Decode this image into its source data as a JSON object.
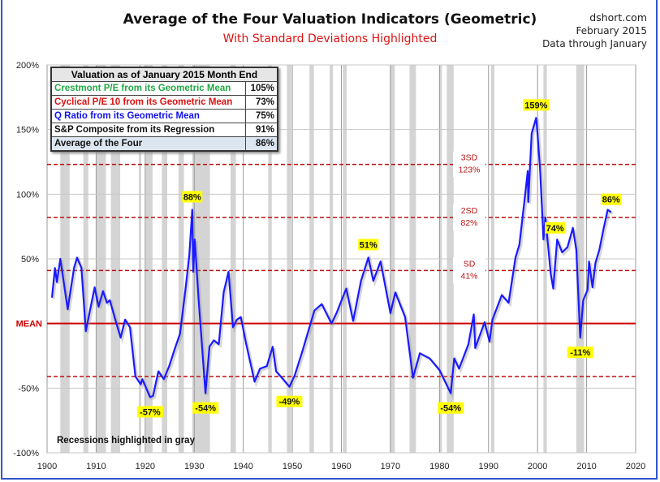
{
  "header": {
    "title": "Average of the Four Valuation Indicators (Geometric)",
    "subtitle": "With Standard Deviations Highlighted",
    "source": "dshort.com",
    "date": "February 2015",
    "data_through": "Data through January"
  },
  "table": {
    "title": "Valuation as of January 2015 Month End",
    "rows": [
      {
        "label": "Crestmont P/E from its Geometric Mean",
        "value": "105%",
        "color": "#22aa44"
      },
      {
        "label": "Cyclical P/E 10 from its Geometric Mean",
        "value": "73%",
        "color": "#dd1111"
      },
      {
        "label": "Q Ratio from its Geometric Mean",
        "value": "75%",
        "color": "#1111ee"
      },
      {
        "label": "S&P Composite from its Regression",
        "value": "91%",
        "color": "#111111"
      },
      {
        "label": "Average of the Four",
        "value": "86%",
        "color": "#111111"
      }
    ]
  },
  "note": "Recessions highlighted in gray",
  "chart_data": {
    "type": "line",
    "xlim": [
      1900,
      2020
    ],
    "ylim": [
      -100,
      200
    ],
    "x_ticks": [
      "1900",
      "1910",
      "1920",
      "1930",
      "1940",
      "1950",
      "1960",
      "1970",
      "1980",
      "1990",
      "2000",
      "2010",
      "2020"
    ],
    "y_ticks": [
      {
        "value": 200,
        "label": "200%"
      },
      {
        "value": 150,
        "label": "150%"
      },
      {
        "value": 100,
        "label": "100%"
      },
      {
        "value": 50,
        "label": "50%"
      },
      {
        "value": 0,
        "label": "MEAN"
      },
      {
        "value": -50,
        "label": "-50%"
      },
      {
        "value": -100,
        "label": "-100%"
      }
    ],
    "grid": true,
    "line_color": "#1a1aff",
    "mean_color": "#cc0000",
    "sd_lines": [
      {
        "value": 123,
        "label": "3SD",
        "value_label": "123%"
      },
      {
        "value": 82,
        "label": "2SD",
        "value_label": "82%"
      },
      {
        "value": 41,
        "label": "SD",
        "value_label": "41%"
      },
      {
        "value": -41,
        "label": "",
        "value_label": ""
      }
    ],
    "recessions": [
      [
        1902.7,
        1904.6
      ],
      [
        1907.4,
        1908.4
      ],
      [
        1910.1,
        1912.0
      ],
      [
        1913.0,
        1914.9
      ],
      [
        1918.7,
        1919.2
      ],
      [
        1920.1,
        1921.5
      ],
      [
        1923.4,
        1924.5
      ],
      [
        1926.8,
        1927.9
      ],
      [
        1929.6,
        1933.2
      ],
      [
        1937.4,
        1938.5
      ],
      [
        1945.1,
        1945.8
      ],
      [
        1948.9,
        1949.8
      ],
      [
        1953.5,
        1954.4
      ],
      [
        1957.6,
        1958.3
      ],
      [
        1960.3,
        1961.1
      ],
      [
        1969.9,
        1970.9
      ],
      [
        1973.9,
        1975.2
      ],
      [
        1980.0,
        1980.5
      ],
      [
        1981.5,
        1982.9
      ],
      [
        1990.5,
        1991.2
      ],
      [
        2001.2,
        2001.9
      ],
      [
        2007.9,
        2009.5
      ]
    ],
    "series": [
      {
        "x": [
          1901.0,
          1901.6,
          1902.0,
          1902.7,
          1904.2,
          1905.5,
          1906.1,
          1907.0,
          1907.9,
          1909.7,
          1910.5,
          1911.4,
          1912.2,
          1912.8,
          1913.9,
          1915.0,
          1915.9,
          1916.9,
          1918.0,
          1919.1,
          1919.4,
          1921.0,
          1921.6,
          1922.7,
          1923.8,
          1924.9,
          1926.0,
          1927.1,
          1928.2,
          1929.0,
          1929.6,
          1929.8,
          1930.1,
          1930.9,
          1932.3,
          1932.6,
          1933.1,
          1934.0,
          1935.0,
          1936.0,
          1937.0,
          1937.9,
          1938.7,
          1939.5,
          1940.6,
          1942.3,
          1943.4,
          1944.8,
          1946.0,
          1946.7,
          1948.1,
          1949.4,
          1950.5,
          1952.0,
          1954.5,
          1956.0,
          1958.0,
          1959.0,
          1961.0,
          1962.4,
          1964.0,
          1965.5,
          1966.5,
          1968.0,
          1970.0,
          1971.0,
          1973.0,
          1974.6,
          1976.0,
          1978.0,
          1980.0,
          1982.3,
          1983.0,
          1984.0,
          1985.9,
          1987.0,
          1987.3,
          1989.2,
          1990.2,
          1990.8,
          1992.7,
          1994.1,
          1995.5,
          1996.3,
          1997.2,
          1998.0,
          1998.1,
          1998.8,
          1999.7,
          1999.9,
          2000.5,
          2001.0,
          2001.2,
          2001.6,
          2002.7,
          2003.2,
          2004.0,
          2005.0,
          2006.1,
          2007.2,
          2007.9,
          2008.7,
          2009.3,
          2010.2,
          2010.5,
          2011.2,
          2011.8,
          2012.6,
          2013.5,
          2014.3,
          2015.0
        ],
        "y": [
          20,
          43,
          32,
          50,
          11,
          43,
          51,
          43,
          -6,
          28,
          13,
          25,
          16,
          18,
          3,
          -11,
          3,
          -3,
          -41,
          -47,
          -43,
          -57,
          -56,
          -37,
          -43,
          -33,
          -20,
          -8,
          26,
          53,
          88,
          40,
          65,
          18,
          -54,
          -40,
          -18,
          -13,
          -16,
          24,
          40,
          -3,
          3,
          5,
          -16,
          -45,
          -35,
          -33,
          -18,
          -37,
          -43,
          -49,
          -40,
          -22,
          10,
          15,
          0,
          8,
          27,
          2,
          33,
          51,
          33,
          48,
          8,
          24,
          5,
          -42,
          -23,
          -27,
          -36,
          -54,
          -27,
          -35,
          -16,
          7,
          -19,
          1,
          -14,
          3,
          22,
          16,
          51,
          61,
          91,
          118,
          94,
          147,
          159,
          151,
          120,
          82,
          65,
          82,
          38,
          27,
          65,
          55,
          59,
          74,
          57,
          -11,
          18,
          26,
          48,
          28,
          47,
          57,
          74,
          88,
          86
        ]
      }
    ],
    "annotations": [
      {
        "x": 1929.6,
        "y": 88,
        "label": "88%",
        "pos": "above"
      },
      {
        "x": 1921.0,
        "y": -57,
        "label": "-57%",
        "pos": "below"
      },
      {
        "x": 1932.3,
        "y": -54,
        "label": "-54%",
        "pos": "below"
      },
      {
        "x": 1949.4,
        "y": -49,
        "label": "-49%",
        "pos": "below"
      },
      {
        "x": 1965.5,
        "y": 51,
        "label": "51%",
        "pos": "above"
      },
      {
        "x": 1982.3,
        "y": -54,
        "label": "-54%",
        "pos": "below"
      },
      {
        "x": 1999.7,
        "y": 159,
        "label": "159%",
        "pos": "above"
      },
      {
        "x": 2007.2,
        "y": 74,
        "label": "74%",
        "pos": "left"
      },
      {
        "x": 2008.7,
        "y": -11,
        "label": "-11%",
        "pos": "below"
      },
      {
        "x": 2015.0,
        "y": 86,
        "label": "86%",
        "pos": "above"
      }
    ]
  }
}
